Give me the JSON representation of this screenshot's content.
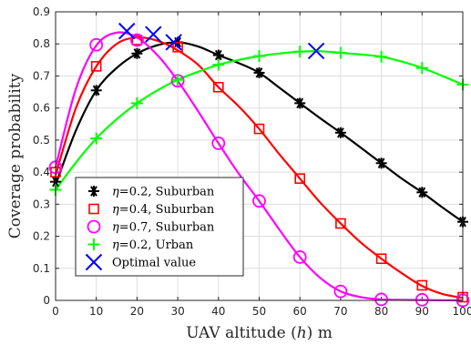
{
  "chart_data": {
    "type": "line",
    "xlabel_parts": [
      "UAV altitude (",
      "h",
      ") m"
    ],
    "ylabel": "Coverage probability",
    "xlim": [
      0,
      100
    ],
    "ylim": [
      0,
      0.9
    ],
    "xticks": [
      "0",
      "10",
      "20",
      "30",
      "40",
      "50",
      "60",
      "70",
      "80",
      "90",
      "100"
    ],
    "yticks": [
      "0",
      "0.1",
      "0.2",
      "0.3",
      "0.4",
      "0.5",
      "0.6",
      "0.7",
      "0.8",
      "0.9"
    ],
    "grid": true,
    "legend_position": "bottom-left",
    "markers_x": [
      0,
      10,
      20,
      30,
      40,
      50,
      60,
      70,
      80,
      90,
      100
    ],
    "series": [
      {
        "legend_symbol": "η",
        "legend_rest": "=0.2, Suburban",
        "color": "#000000",
        "marker": "asterisk",
        "curve": [
          [
            0,
            0.36
          ],
          [
            5,
            0.53
          ],
          [
            10,
            0.655
          ],
          [
            15,
            0.725
          ],
          [
            20,
            0.77
          ],
          [
            25,
            0.796
          ],
          [
            30,
            0.805
          ],
          [
            35,
            0.792
          ],
          [
            40,
            0.765
          ],
          [
            45,
            0.74
          ],
          [
            50,
            0.71
          ],
          [
            55,
            0.663
          ],
          [
            60,
            0.615
          ],
          [
            65,
            0.568
          ],
          [
            70,
            0.523
          ],
          [
            75,
            0.476
          ],
          [
            80,
            0.428
          ],
          [
            85,
            0.38
          ],
          [
            90,
            0.337
          ],
          [
            95,
            0.29
          ],
          [
            100,
            0.245
          ]
        ],
        "markers": [
          0.37,
          0.655,
          0.77,
          0.805,
          0.765,
          0.71,
          0.615,
          0.523,
          0.428,
          0.337,
          0.245
        ]
      },
      {
        "legend_symbol": "η",
        "legend_rest": "=0.4, Suburban",
        "color": "#ff0000",
        "marker": "square",
        "curve": [
          [
            0,
            0.39
          ],
          [
            5,
            0.6
          ],
          [
            10,
            0.73
          ],
          [
            15,
            0.8
          ],
          [
            20,
            0.82
          ],
          [
            25,
            0.81
          ],
          [
            30,
            0.78
          ],
          [
            35,
            0.735
          ],
          [
            40,
            0.665
          ],
          [
            45,
            0.605
          ],
          [
            50,
            0.535
          ],
          [
            55,
            0.455
          ],
          [
            60,
            0.38
          ],
          [
            65,
            0.305
          ],
          [
            70,
            0.24
          ],
          [
            75,
            0.18
          ],
          [
            80,
            0.13
          ],
          [
            85,
            0.085
          ],
          [
            90,
            0.045
          ],
          [
            95,
            0.02
          ],
          [
            100,
            0.008
          ]
        ],
        "markers": [
          0.4,
          0.73,
          0.812,
          0.79,
          0.665,
          0.535,
          0.38,
          0.24,
          0.13,
          0.047,
          0.01
        ]
      },
      {
        "legend_symbol": "η",
        "legend_rest": "=0.7, Suburban",
        "color": "#ff00ff",
        "marker": "circle",
        "curve": [
          [
            0,
            0.415
          ],
          [
            5,
            0.66
          ],
          [
            10,
            0.795
          ],
          [
            15,
            0.835
          ],
          [
            20,
            0.82
          ],
          [
            25,
            0.765
          ],
          [
            30,
            0.685
          ],
          [
            35,
            0.59
          ],
          [
            40,
            0.49
          ],
          [
            45,
            0.395
          ],
          [
            50,
            0.31
          ],
          [
            55,
            0.22
          ],
          [
            60,
            0.135
          ],
          [
            65,
            0.07
          ],
          [
            70,
            0.028
          ],
          [
            75,
            0.01
          ],
          [
            80,
            0.003
          ],
          [
            90,
            0.001
          ],
          [
            100,
            0.0
          ]
        ],
        "markers": [
          0.415,
          0.797,
          0.812,
          0.685,
          0.49,
          0.31,
          0.135,
          0.028,
          0.003,
          0.002,
          0.0
        ]
      },
      {
        "legend_symbol": "η",
        "legend_rest": "=0.2, Urban",
        "color": "#00ff00",
        "marker": "plus",
        "curve": [
          [
            0,
            0.345
          ],
          [
            5,
            0.43
          ],
          [
            10,
            0.505
          ],
          [
            15,
            0.565
          ],
          [
            20,
            0.615
          ],
          [
            25,
            0.655
          ],
          [
            30,
            0.688
          ],
          [
            35,
            0.713
          ],
          [
            40,
            0.735
          ],
          [
            45,
            0.75
          ],
          [
            50,
            0.762
          ],
          [
            55,
            0.77
          ],
          [
            60,
            0.776
          ],
          [
            65,
            0.777
          ],
          [
            70,
            0.772
          ],
          [
            75,
            0.767
          ],
          [
            80,
            0.76
          ],
          [
            85,
            0.745
          ],
          [
            90,
            0.725
          ],
          [
            95,
            0.7
          ],
          [
            100,
            0.673
          ]
        ],
        "markers": [
          0.345,
          0.505,
          0.615,
          0.688,
          0.735,
          0.762,
          0.776,
          0.772,
          0.76,
          0.725,
          0.673
        ]
      }
    ],
    "optimal": {
      "legend_label": "Optimal value",
      "color": "#0000ff",
      "marker": "x",
      "points": [
        [
          17.5,
          0.84
        ],
        [
          24,
          0.83
        ],
        [
          29,
          0.805
        ],
        [
          64,
          0.778
        ]
      ]
    }
  }
}
